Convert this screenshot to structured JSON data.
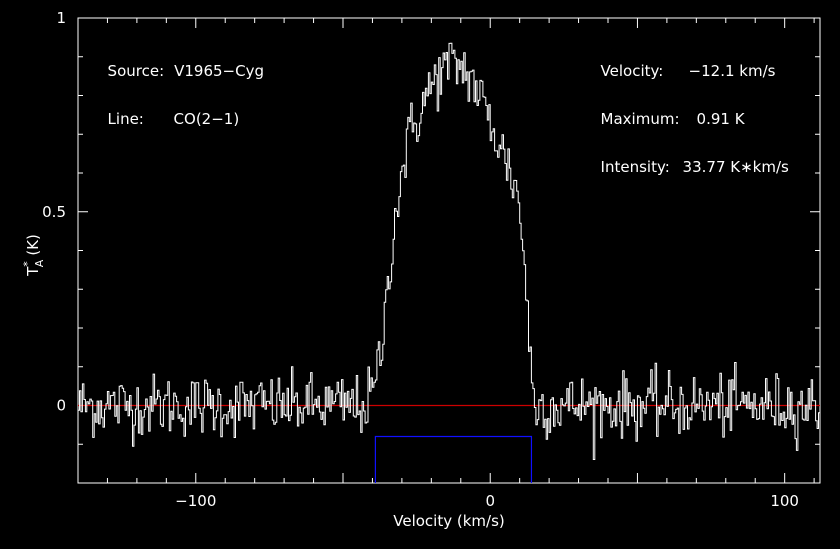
{
  "chart_data": {
    "type": "line",
    "xlabel": "Velocity (km/s)",
    "ylabel_main": "T",
    "ylabel_sup": "*",
    "ylabel_sub": "A",
    "ylabel_unit": "(K)",
    "xlim": [
      -140,
      112
    ],
    "ylim": [
      -0.2,
      1.0
    ],
    "x_ticks": [
      -100,
      0,
      100
    ],
    "x_tick_labels": [
      "−100",
      "0",
      "100"
    ],
    "y_ticks": [
      0,
      0.5,
      1
    ],
    "y_tick_labels": [
      "0",
      "0.5",
      "1"
    ],
    "grid": false,
    "baseline": {
      "y": 0,
      "color": "#cc0000"
    },
    "window": {
      "x_start": -39,
      "x_end": 14,
      "y_top": -0.08,
      "color": "#1010ff"
    },
    "series": [
      {
        "color": "#ffffff",
        "x_start": -140,
        "x_step": 0.5,
        "noise_rms": 0.04,
        "profile_points": [
          [
            -140,
            0.0
          ],
          [
            -42,
            0.0
          ],
          [
            -39,
            0.05
          ],
          [
            -36,
            0.2
          ],
          [
            -34,
            0.38
          ],
          [
            -32,
            0.5
          ],
          [
            -30,
            0.6
          ],
          [
            -28,
            0.68
          ],
          [
            -25,
            0.74
          ],
          [
            -22,
            0.79
          ],
          [
            -18,
            0.85
          ],
          [
            -15,
            0.87
          ],
          [
            -12,
            0.88
          ],
          [
            -9,
            0.87
          ],
          [
            -6,
            0.84
          ],
          [
            -3,
            0.79
          ],
          [
            0,
            0.73
          ],
          [
            3,
            0.68
          ],
          [
            6,
            0.62
          ],
          [
            9,
            0.56
          ],
          [
            10,
            0.5
          ],
          [
            12,
            0.35
          ],
          [
            13,
            0.2
          ],
          [
            14,
            0.08
          ],
          [
            15,
            0.0
          ],
          [
            112,
            0.0
          ]
        ]
      }
    ]
  },
  "annotations": {
    "source_label": "Source:",
    "source_value": "V1965−Cyg",
    "line_label": "Line:",
    "line_value": "CO(2−1)",
    "velocity_label": "Velocity:",
    "velocity_value": "−12.1 km/s",
    "maximum_label": "Maximum:",
    "maximum_value": "0.91 K",
    "intensity_label": "Intensity:",
    "intensity_value": "33.77 K∗km/s"
  }
}
